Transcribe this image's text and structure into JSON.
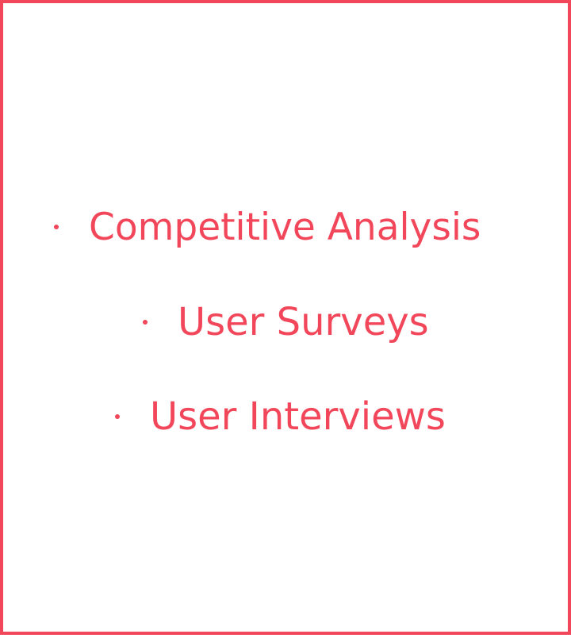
{
  "theme": {
    "accent_color": "#f2475a",
    "background_color": "#ffffff"
  },
  "list": {
    "items": [
      {
        "label": "Competitive Analysis"
      },
      {
        "label": "User Surveys"
      },
      {
        "label": "User Interviews"
      }
    ]
  }
}
